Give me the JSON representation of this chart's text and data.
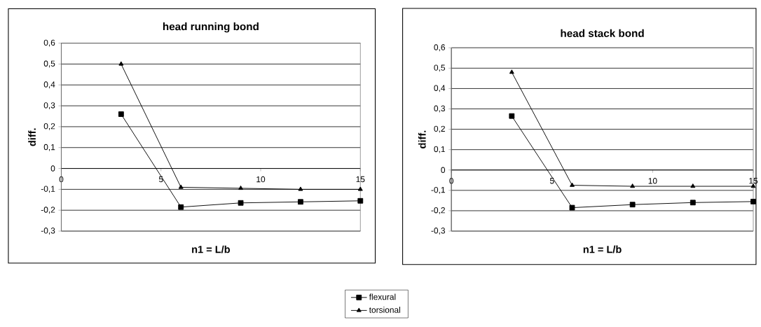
{
  "chart_data": [
    {
      "type": "line",
      "title": "head running bond",
      "xlabel": "n1 = L/b",
      "ylabel": "diff.",
      "x": [
        3,
        6,
        9,
        12,
        15
      ],
      "series": [
        {
          "name": "flexural",
          "color": "#000000",
          "marker": "square",
          "values": [
            0.26,
            -0.185,
            -0.165,
            -0.16,
            -0.155
          ]
        },
        {
          "name": "torsional",
          "color": "#000000",
          "marker": "triangle",
          "values": [
            0.5,
            -0.09,
            -0.095,
            -0.1,
            -0.1
          ]
        }
      ],
      "xlim": [
        0,
        15
      ],
      "ylim": [
        -0.3,
        0.6
      ],
      "xticks": [
        0,
        5,
        10,
        15
      ],
      "yticks": [
        {
          "value": -0.3,
          "label": "-0,3"
        },
        {
          "value": -0.2,
          "label": "-0,2"
        },
        {
          "value": -0.1,
          "label": "-0,1"
        },
        0,
        {
          "value": 0.1,
          "label": "0,1"
        },
        {
          "value": 0.2,
          "label": "0,2"
        },
        {
          "value": 0.3,
          "label": "0,3"
        },
        {
          "value": 0.4,
          "label": "0,4"
        },
        {
          "value": 0.5,
          "label": "0,5"
        },
        {
          "value": 0.6,
          "label": "0,6"
        }
      ],
      "grid": "y",
      "legend": "bottom"
    },
    {
      "type": "line",
      "title": "head stack bond",
      "xlabel": "n1 = L/b",
      "ylabel": "diff.",
      "x": [
        3,
        6,
        9,
        12,
        15
      ],
      "series": [
        {
          "color": "#000000",
          "marker": "square",
          "values": [
            0.265,
            -0.185,
            -0.17,
            -0.16,
            -0.155
          ]
        },
        {
          "color": "#000000",
          "marker": "triangle",
          "values": [
            0.48,
            -0.075,
            -0.08,
            -0.08,
            -0.08
          ]
        }
      ],
      "xlim": [
        0,
        15
      ],
      "ylim": [
        -0.3,
        0.6
      ],
      "xticks": [
        0,
        5,
        10,
        15
      ],
      "yticks": [
        {
          "value": -0.3,
          "label": "-0,3"
        },
        {
          "value": -0.2,
          "label": "-0,2"
        },
        {
          "value": -0.1,
          "label": "-0,1"
        },
        0,
        {
          "value": 0.1,
          "label": "0,1"
        },
        {
          "value": 0.2,
          "label": "0,2"
        },
        {
          "value": 0.3,
          "label": "0,3"
        },
        {
          "value": 0.4,
          "label": "0,4"
        },
        {
          "value": 0.5,
          "label": "0,5"
        },
        {
          "value": 0.6,
          "label": "0,6"
        }
      ],
      "grid": "y"
    }
  ]
}
